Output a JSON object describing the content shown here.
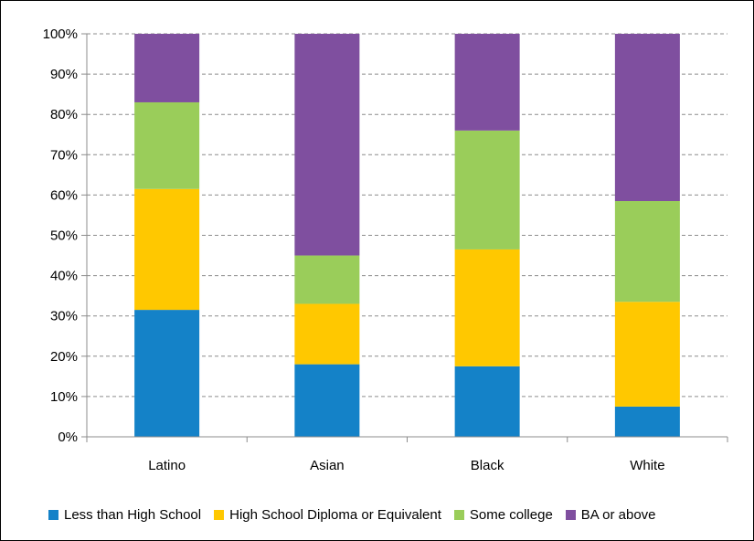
{
  "chart_data": {
    "type": "bar",
    "stacked": true,
    "categories": [
      "Latino",
      "Asian",
      "Black",
      "White"
    ],
    "series": [
      {
        "name": "Less than High School",
        "color": "#1482C8",
        "values": [
          31.5,
          18,
          17.5,
          7.5
        ]
      },
      {
        "name": "High School Diploma or Equivalent",
        "color": "#FFC800",
        "values": [
          30,
          15,
          29,
          26
        ]
      },
      {
        "name": "Some college",
        "color": "#9ACD5A",
        "values": [
          21.5,
          12,
          29.5,
          25
        ]
      },
      {
        "name": "BA or above",
        "color": "#7F4F9F",
        "values": [
          17,
          55,
          24,
          41.5
        ]
      }
    ],
    "y_ticks": [
      "0%",
      "10%",
      "20%",
      "30%",
      "40%",
      "50%",
      "60%",
      "70%",
      "80%",
      "90%",
      "100%"
    ],
    "ylim": [
      0,
      100
    ],
    "grid": true,
    "legend_position": "bottom"
  }
}
